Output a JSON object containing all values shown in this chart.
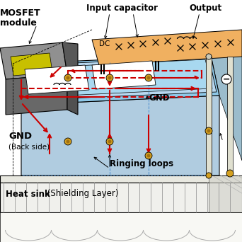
{
  "colors": {
    "pcb_blue": "#8ec8e8",
    "pcb_blue_dark": "#6aaccc",
    "orange": "#f0b060",
    "orange_dark": "#d09040",
    "gray_light": "#d8d8d0",
    "gray_mid": "#b8b8b0",
    "gray_dark": "#888880",
    "mosfet_top": "#909090",
    "mosfet_side": "#686868",
    "mosfet_right": "#585858",
    "red": "#cc0000",
    "gold": "#d4a020",
    "gold_dark": "#a07010",
    "white": "#ffffff",
    "black": "#000000",
    "bg": "#ffffff",
    "cream": "#e8e4d8",
    "cream_dark": "#ccc8b8",
    "via_col": "#d0a000",
    "dashed_blue": "#4488cc",
    "inner_blue": "#a8d8f0",
    "pcb_side": "#b0cce0"
  },
  "labels": {
    "mosfet1": "MOSFET",
    "mosfet2": "module",
    "input_cap": "Input capacitor",
    "output": "Output",
    "dc": "DC",
    "gnd_board": "GND",
    "gnd_back1": "GND",
    "gnd_back2": "(Back side)",
    "ringing": "Ringing loops",
    "heat_sink_bold": "Heat sink",
    "heat_sink_normal": " (Shielding Layer)"
  }
}
